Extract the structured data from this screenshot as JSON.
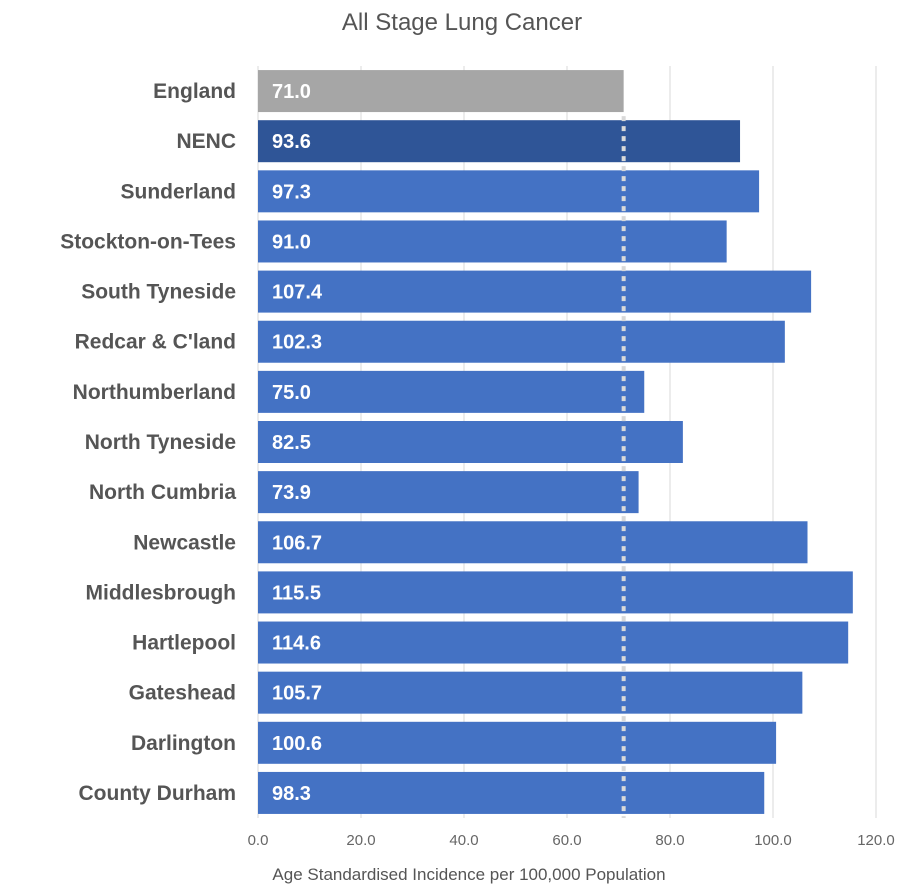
{
  "chart_data": {
    "type": "bar",
    "orientation": "horizontal",
    "title": "All Stage Lung Cancer",
    "xlabel": "Age Standardised Incidence per 100,000 Population",
    "ylabel": "",
    "xlim": [
      0,
      120
    ],
    "x_ticks": [
      "0.0",
      "20.0",
      "40.0",
      "60.0",
      "80.0",
      "100.0",
      "120.0"
    ],
    "grid": true,
    "reference_line": {
      "value": 71.0,
      "style": "dotted"
    },
    "categories": [
      "England",
      "NENC",
      "Sunderland",
      "Stockton-on-Tees",
      "South Tyneside",
      "Redcar & C'land",
      "Northumberland",
      "North Tyneside",
      "North Cumbria",
      "Newcastle",
      "Middlesbrough",
      "Hartlepool",
      "Gateshead",
      "Darlington",
      "County Durham"
    ],
    "values": [
      71.0,
      93.6,
      97.3,
      91.0,
      107.4,
      102.3,
      75.0,
      82.5,
      73.9,
      106.7,
      115.5,
      114.6,
      105.7,
      100.6,
      98.3
    ],
    "value_labels": [
      "71.0",
      "93.6",
      "97.3",
      "91.0",
      "107.4",
      "102.3",
      "75.0",
      "82.5",
      "73.9",
      "106.7",
      "115.5",
      "114.6",
      "105.7",
      "100.6",
      "98.3"
    ],
    "colors": {
      "England": "#a6a6a6",
      "NENC": "#2f5597",
      "default": "#4472c4"
    }
  }
}
